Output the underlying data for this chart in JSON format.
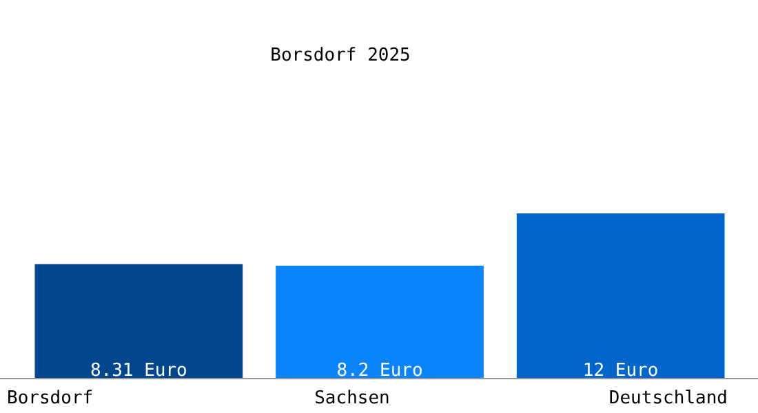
{
  "chart_data": {
    "type": "bar",
    "title": "Borsdorf 2025",
    "categories": [
      "Borsdorf",
      "Sachsen",
      "Deutschland"
    ],
    "values": [
      8.31,
      8.2,
      12
    ],
    "colors": [
      "#02468d",
      "#0a84fd",
      "#0265cb"
    ],
    "value_labels": [
      "8.31 Euro",
      "8.2 Euro",
      "12 Euro"
    ]
  }
}
